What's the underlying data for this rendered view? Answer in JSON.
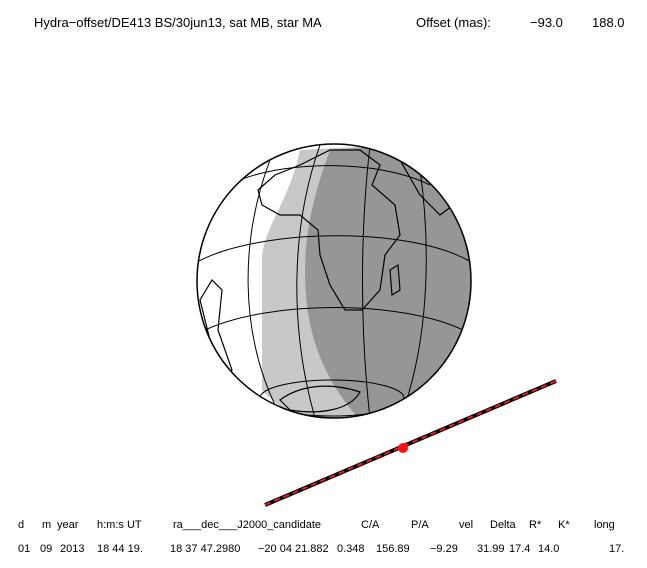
{
  "header": {
    "title": "Hydra−offset/DE413 BS/30jun13, sat MB, star MA",
    "offset_label": "Offset (mas):",
    "offset_x": "−93.0",
    "offset_y": "188.0"
  },
  "table": {
    "headers": [
      "d",
      "m",
      "year",
      "h:m:s UT",
      "ra___dec___J2000_candidate",
      "C/A",
      "P/A",
      "vel",
      "Delta",
      "R*",
      "K*",
      "long"
    ],
    "rows": [
      [
        "01",
        "09",
        "2013",
        "18 44 19.",
        "18 37 47.2980",
        "−20 04 21.882",
        "0.348",
        "156.89",
        "−9.29",
        "31.99",
        "17.4",
        "14.0",
        "17."
      ]
    ]
  }
}
